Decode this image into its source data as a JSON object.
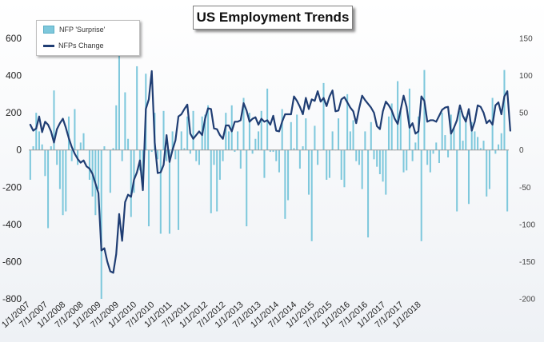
{
  "title": "US Employment Trends",
  "legend": {
    "bars": "NFP 'Surprise'",
    "line": "NFPs Change"
  },
  "colors": {
    "bars": "#7ec8dc",
    "bar_edge": "#4fa9c2",
    "line": "#1f3d73",
    "text": "#222222"
  },
  "chart_data": {
    "type": "bar+line",
    "title": "US Employment Trends",
    "left_axis": {
      "ticks": [
        "600",
        "400",
        "200",
        "0",
        "-200",
        "-400",
        "-600",
        "-800"
      ],
      "range": [
        -800,
        600
      ],
      "series": "NFP 'Surprise'"
    },
    "right_axis": {
      "ticks": [
        "150",
        "100",
        "50",
        "0",
        "-50",
        "-100",
        "-150",
        "-200"
      ],
      "range": [
        -200,
        150
      ],
      "series": "NFPs Change"
    },
    "x_ticks": [
      "1/1/2007",
      "7/1/2007",
      "1/1/2008",
      "7/1/2008",
      "1/1/2009",
      "7/1/2009",
      "1/1/2010",
      "7/1/2010",
      "1/1/2011",
      "7/1/2011",
      "1/1/2012",
      "7/1/2012",
      "1/1/2013",
      "7/1/2013",
      "1/1/2014",
      "7/1/2014",
      "1/1/2015",
      "7/1/2015",
      "1/1/2016",
      "7/1/2016",
      "1/1/2017",
      "7/1/2017",
      "1/1/2018"
    ],
    "x_range": [
      "2007-01",
      "2018-05"
    ],
    "grid": false,
    "legend_position": "top-left",
    "series": [
      {
        "name": "NFP 'Surprise'",
        "kind": "bar",
        "axis": "left",
        "values": [
          -160,
          20,
          200,
          100,
          30,
          -140,
          -420,
          20,
          320,
          -80,
          -210,
          -350,
          -330,
          180,
          -60,
          220,
          -80,
          40,
          90,
          0,
          -160,
          -250,
          -350,
          -210,
          -800,
          20,
          0,
          -230,
          10,
          240,
          540,
          -60,
          310,
          60,
          -360,
          -230,
          450,
          -110,
          -200,
          410,
          -410,
          -10,
          200,
          -50,
          -450,
          210,
          -60,
          -450,
          100,
          -50,
          -430,
          100,
          10,
          180,
          -20,
          210,
          -60,
          -80,
          180,
          190,
          240,
          -340,
          -80,
          -330,
          -160,
          -60,
          200,
          100,
          240,
          -10,
          100,
          -100,
          280,
          -410,
          200,
          -20,
          60,
          100,
          210,
          -150,
          330,
          -10,
          -10,
          -60,
          -120,
          220,
          -370,
          -270,
          150,
          10,
          190,
          -100,
          20,
          170,
          -240,
          -490,
          130,
          -80,
          0,
          360,
          -160,
          -150,
          100,
          0,
          170,
          -160,
          -200,
          300,
          100,
          160,
          -60,
          -80,
          -210,
          100,
          -470,
          150,
          -50,
          -90,
          -130,
          -170,
          -240,
          180,
          250,
          0,
          370,
          210,
          -120,
          -110,
          330,
          -60,
          40,
          180,
          -490,
          430,
          -80,
          -120,
          -20,
          40,
          -70,
          200,
          80,
          -40,
          190,
          120,
          -330,
          210,
          50,
          180,
          -290,
          150,
          100,
          70,
          10,
          50,
          -250,
          -210,
          280,
          -20,
          30,
          90,
          430,
          -330
        ]
      },
      {
        "name": "NFPs Change",
        "kind": "line",
        "axis": "right",
        "values": [
          34,
          26,
          29,
          45,
          24,
          38,
          34,
          25,
          10,
          28,
          36,
          42,
          30,
          16,
          4,
          -5,
          -12,
          -17,
          -14,
          -22,
          -25,
          -32,
          -45,
          -58,
          -135,
          -132,
          -150,
          -163,
          -165,
          -140,
          -86,
          -122,
          -70,
          -60,
          -63,
          -40,
          -30,
          -14,
          -54,
          55,
          68,
          106,
          10,
          -31,
          -30,
          -20,
          20,
          -16,
          0,
          13,
          45,
          48,
          55,
          61,
          22,
          15,
          20,
          25,
          20,
          42,
          56,
          55,
          29,
          28,
          20,
          15,
          33,
          33,
          25,
          38,
          38,
          40,
          63,
          53,
          38,
          42,
          44,
          34,
          42,
          38,
          40,
          34,
          46,
          26,
          25,
          38,
          48,
          48,
          48,
          72,
          66,
          58,
          48,
          70,
          55,
          68,
          66,
          79,
          65,
          70,
          59,
          72,
          80,
          52,
          53,
          68,
          71,
          64,
          57,
          52,
          36,
          56,
          73,
          67,
          62,
          57,
          50,
          32,
          28,
          52,
          65,
          60,
          53,
          42,
          35,
          54,
          73,
          58,
          30,
          36,
          22,
          25,
          72,
          66,
          38,
          40,
          40,
          38,
          46,
          54,
          57,
          58,
          22,
          30,
          40,
          60,
          46,
          38,
          55,
          26,
          38,
          60,
          58,
          50,
          36,
          40,
          34,
          60,
          64,
          48,
          72,
          79,
          26
        ]
      }
    ]
  }
}
